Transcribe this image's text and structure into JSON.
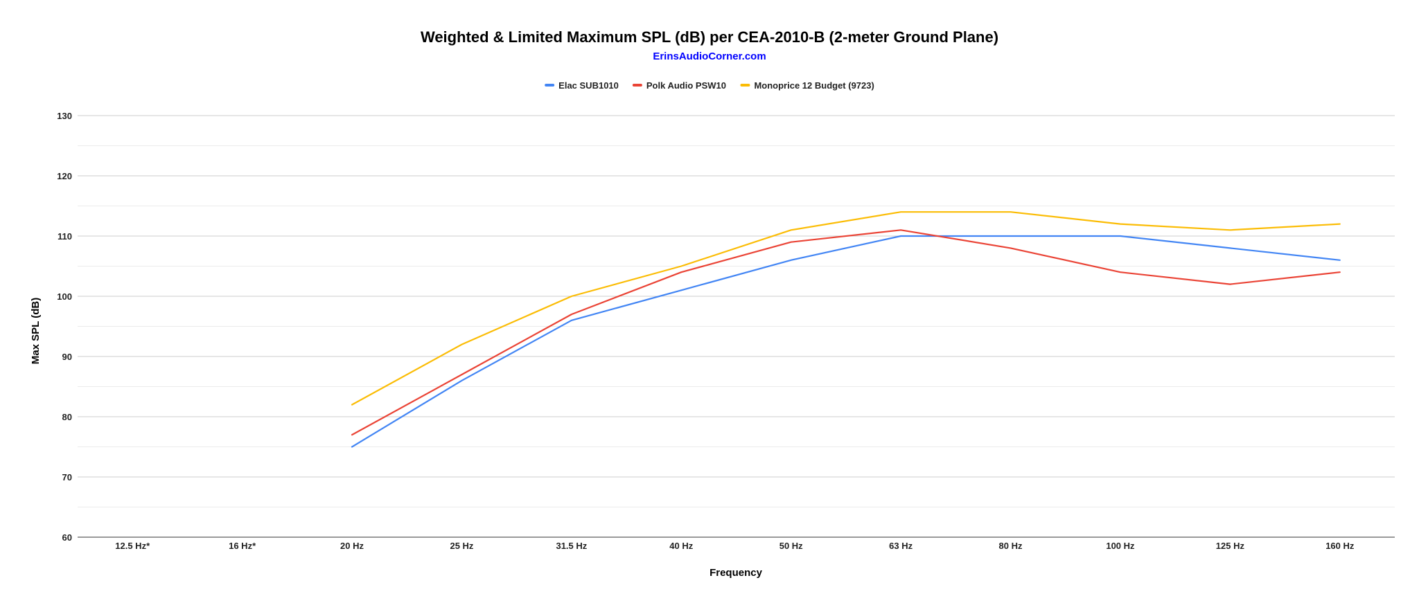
{
  "chart_data": {
    "type": "line",
    "title": "Weighted & Limited Maximum SPL (dB) per CEA-2010-B (2-meter Ground Plane)",
    "subtitle": "ErinsAudioCorner.com",
    "xlabel": "Frequency",
    "ylabel": "Max SPL (dB)",
    "ylim": [
      60,
      130
    ],
    "yticks": [
      60,
      70,
      80,
      90,
      100,
      110,
      120,
      130
    ],
    "grid": true,
    "legend_position": "top",
    "categories": [
      "12.5 Hz*",
      "16 Hz*",
      "20 Hz",
      "25 Hz",
      "31.5 Hz",
      "40 Hz",
      "50 Hz",
      "63 Hz",
      "80 Hz",
      "100 Hz",
      "125 Hz",
      "160 Hz"
    ],
    "series": [
      {
        "name": "Elac SUB1010",
        "color": "#4285f4",
        "values": [
          null,
          null,
          75,
          86,
          96,
          101,
          106,
          110,
          110,
          110,
          108,
          106
        ]
      },
      {
        "name": "Polk Audio PSW10",
        "color": "#ea4335",
        "values": [
          null,
          null,
          77,
          87,
          97,
          104,
          109,
          111,
          108,
          104,
          102,
          104
        ]
      },
      {
        "name": "Monoprice 12 Budget (9723)",
        "color": "#fbbc04",
        "values": [
          null,
          null,
          82,
          92,
          100,
          105,
          111,
          114,
          114,
          112,
          111,
          112
        ]
      }
    ]
  }
}
